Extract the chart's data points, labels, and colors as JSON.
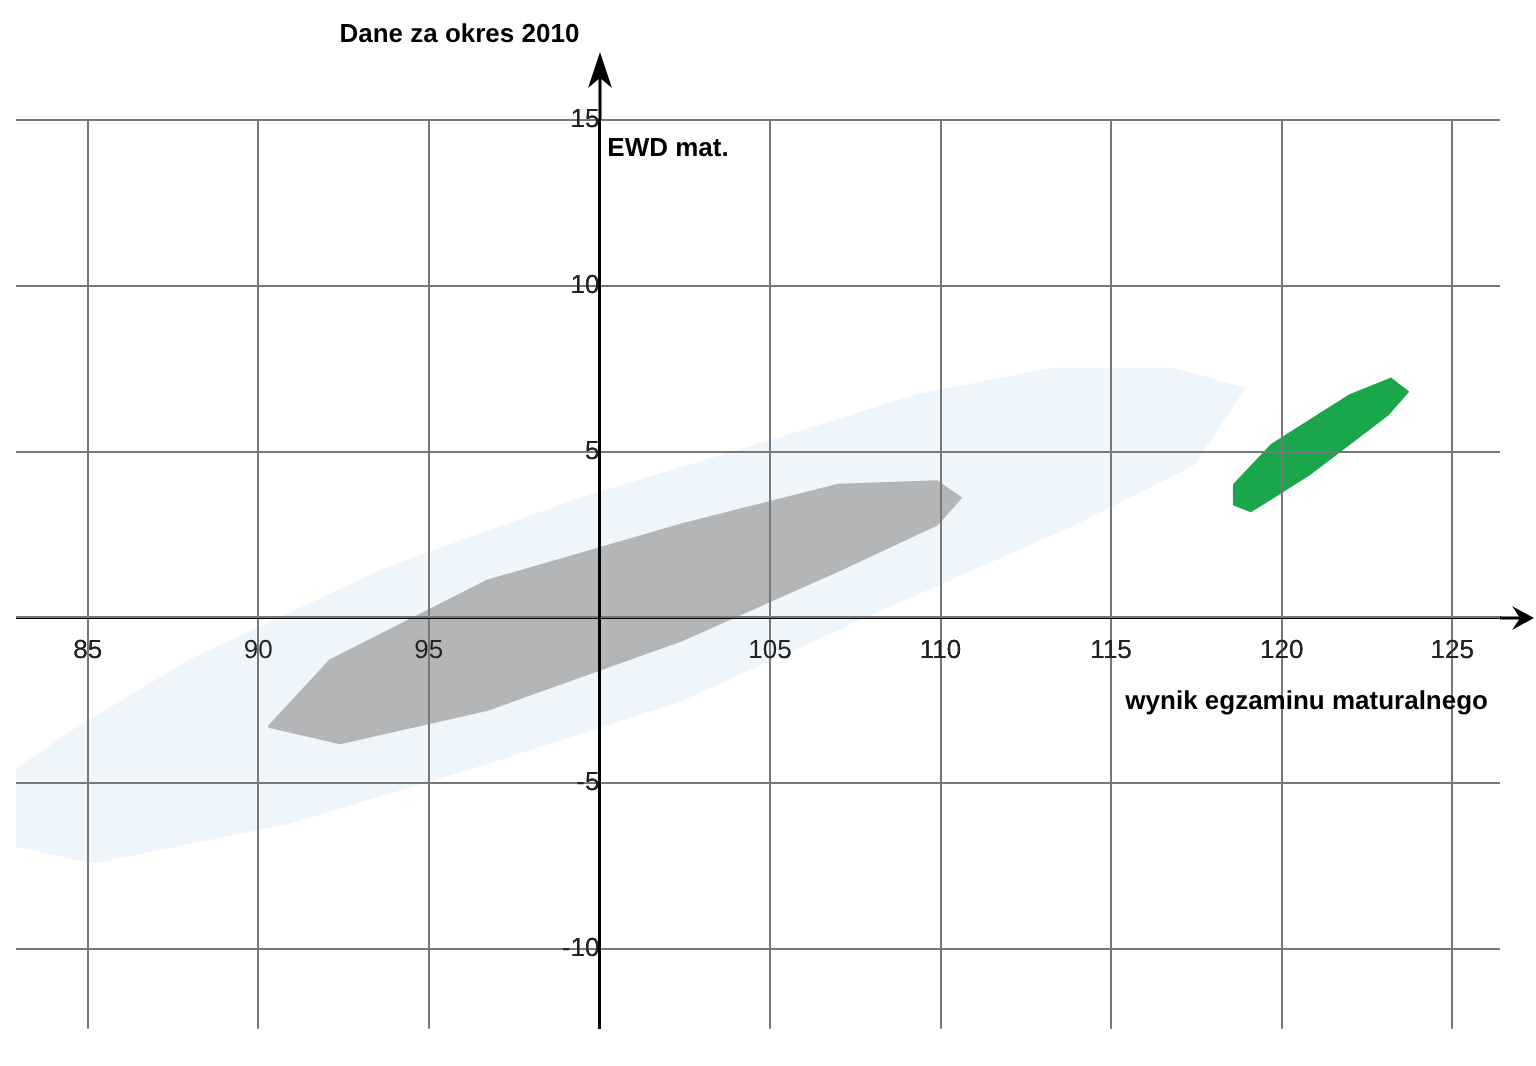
{
  "chart_data": {
    "type": "area",
    "title": "Dane za okres 2010",
    "xlabel": "wynik egzaminu maturalnego",
    "ylabel": "EWD mat.",
    "xlim": [
      82.9,
      126.4
    ],
    "ylim": [
      -12.4,
      15
    ],
    "xticks": [
      85,
      90,
      95,
      {
        "value": 100,
        "label": null
      },
      105,
      110,
      115,
      120,
      125
    ],
    "yticks": [
      -10,
      -5,
      {
        "value": 0,
        "label": null
      },
      5,
      10,
      15
    ],
    "grid": true,
    "marker": "none",
    "series": [
      {
        "color": "#eef5fb",
        "x": [
          118.9,
          116.8,
          113.3,
          109.3,
          105.3,
          99.5,
          93.8,
          88.0,
          84.6,
          82.9,
          82.9,
          85.2,
          90.9,
          96.7,
          102.4,
          108.2,
          113.9,
          117.4,
          118.9
        ],
        "values": [
          6.9,
          7.5,
          7.5,
          6.7,
          5.4,
          3.6,
          1.5,
          -1.3,
          -3.4,
          -4.6,
          -6.9,
          -7.4,
          -6.2,
          -4.4,
          -2.5,
          0.2,
          2.8,
          4.6,
          6.9
        ]
      },
      {
        "color": "#b3b5b7",
        "x": [
          90.3,
          92.4,
          96.7,
          102.4,
          107.0,
          109.9,
          110.6,
          109.9,
          107.0,
          102.4,
          96.7,
          92.1,
          90.3
        ],
        "values": [
          -3.3,
          -3.8,
          -2.8,
          -0.7,
          1.4,
          2.8,
          3.6,
          4.1,
          4.0,
          2.8,
          1.1,
          -1.3,
          -3.3
        ]
      },
      {
        "color": "#1aa64a",
        "x": [
          118.6,
          119.1,
          120.8,
          123.1,
          123.7,
          123.2,
          122.0,
          119.7,
          118.6,
          118.6
        ],
        "values": [
          3.4,
          3.2,
          4.3,
          6.1,
          6.8,
          7.2,
          6.7,
          5.2,
          4.0,
          3.4
        ]
      }
    ]
  }
}
